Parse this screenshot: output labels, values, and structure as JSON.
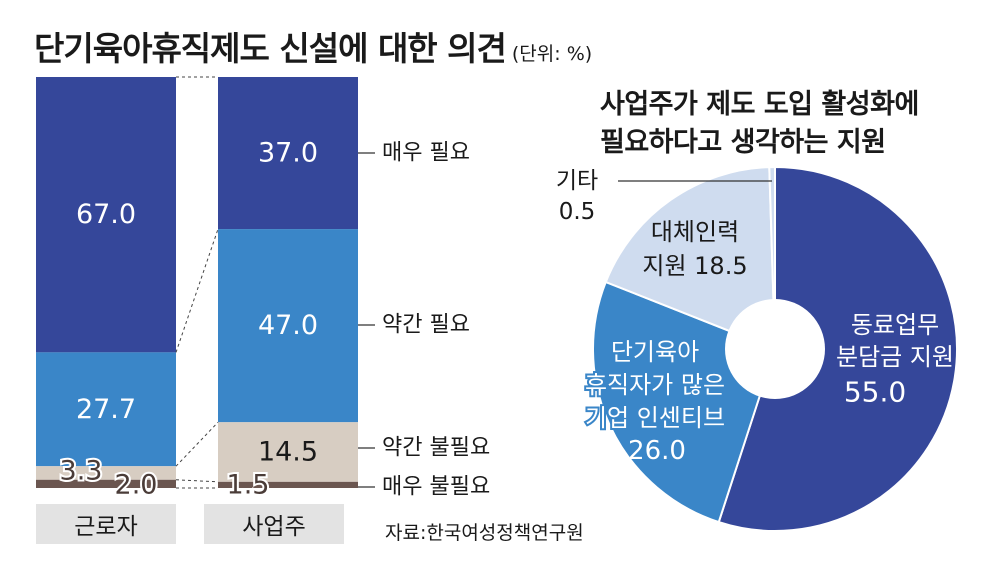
{
  "title": "단기육아휴직제도 신설에 대한 의견",
  "unit": "(단위: %)",
  "source": "자료:한국여성정책연구원",
  "colors": {
    "매우 필요": "#35479a",
    "약간 필요": "#3a86c8",
    "약간 불필요": "#d7cdc2",
    "매우 불필요": "#6b5650",
    "기타": "#cfdcef",
    "대체인력 지원": "#cfdcef",
    "단기육아 휴직자가 많은 기업 인센티브": "#3a86c8",
    "동료업무 분담금 지원": "#35479a"
  },
  "chart_data": [
    {
      "type": "bar",
      "stacked": true,
      "title": "단기육아휴직제도 신설에 대한 의견",
      "unit": "%",
      "categories": [
        "근로자",
        "사업주"
      ],
      "series": [
        {
          "name": "매우 필요",
          "values": [
            67.0,
            37.0
          ]
        },
        {
          "name": "약간 필요",
          "values": [
            27.7,
            47.0
          ]
        },
        {
          "name": "약간 불필요",
          "values": [
            3.3,
            14.5
          ]
        },
        {
          "name": "매우 불필요",
          "values": [
            2.0,
            1.5
          ]
        }
      ]
    },
    {
      "type": "pie",
      "title": "사업주가 제도 도입 활성화에 필요하다고 생각하는 지원",
      "donut": true,
      "slices": [
        {
          "label": "동료업무 분담금 지원",
          "lines": [
            "동료업무",
            "분담금 지원"
          ],
          "value": 55.0
        },
        {
          "label": "단기육아 휴직자가 많은 기업 인센티브",
          "lines": [
            "단기육아",
            "휴직자가 많은",
            "기업 인센티브"
          ],
          "value": 26.0
        },
        {
          "label": "대체인력 지원",
          "lines": [
            "대체인력",
            "지원"
          ],
          "value": 18.5
        },
        {
          "label": "기타",
          "lines": [
            "기타"
          ],
          "value": 0.5
        }
      ]
    }
  ]
}
